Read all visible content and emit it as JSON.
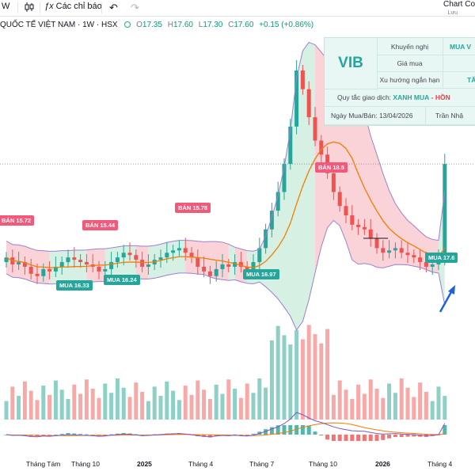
{
  "toolbar": {
    "interval": "W",
    "indicators_label": "Các chỉ báo",
    "chart_title": "Chart Co",
    "chart_subtitle": "Lưu"
  },
  "legend": {
    "symbol": "QUỐC TẾ VIỆT NAM · 1W · HSX",
    "open_label": "O",
    "open": "17.35",
    "high_label": "H",
    "high": "17.60",
    "low_label": "L",
    "low": "17.30",
    "close_label": "C",
    "close": "17.60",
    "change": "+0.15 (+0.86%)"
  },
  "info_table": {
    "ticker": "VIB",
    "rows": [
      {
        "label": "Khuyến nghị",
        "value": "MUA V"
      },
      {
        "label": "Giá mua",
        "value": ""
      },
      {
        "label": "Xu hướng ngắn hạn",
        "value": "TĂ"
      }
    ],
    "rule_label": "Quy tắc giao dịch:",
    "rule_green": "XANH MUA",
    "rule_sep": "-",
    "rule_red": "HỒN",
    "date_text": "Ngày Mua/Bán: 13/04/2026",
    "author_text": "Trần Nhậ"
  },
  "signals": [
    {
      "kind": "sell",
      "text": "BÁN 15.72"
    },
    {
      "kind": "sell",
      "text": "BÁN 15.44"
    },
    {
      "kind": "sell",
      "text": "BÁN 15.78"
    },
    {
      "kind": "sell",
      "text": "BÁN 18.5"
    },
    {
      "kind": "buy",
      "text": "MUA 16.33"
    },
    {
      "kind": "buy",
      "text": "MUA 16.24"
    },
    {
      "kind": "buy",
      "text": "MUA 16.97"
    },
    {
      "kind": "buy",
      "text": "MUA 17.6"
    }
  ],
  "x_axis": [
    "Tháng Tám",
    "Tháng 10",
    "2025",
    "Tháng 4",
    "Tháng 7",
    "Tháng 10",
    "2026",
    "Tháng 4"
  ],
  "colors": {
    "up": "#26a69a",
    "down": "#ef5350",
    "sell_tag": "#f25a7c",
    "buy_tag": "#26a69a",
    "ma": "#f57c00",
    "band": "#9c7fd1"
  },
  "chart_data": {
    "type": "candlestick",
    "timeframe": "1W",
    "price_range": [
      14.4,
      20.6
    ],
    "candles_close": [
      15.6,
      15.45,
      15.5,
      15.4,
      15.25,
      15.2,
      15.35,
      15.3,
      15.4,
      15.5,
      15.6,
      15.55,
      15.5,
      15.45,
      15.4,
      15.3,
      15.35,
      15.5,
      15.6,
      15.7,
      15.65,
      15.55,
      15.4,
      15.45,
      15.55,
      15.6,
      15.7,
      15.75,
      15.8,
      15.7,
      15.6,
      15.4,
      15.3,
      15.2,
      15.35,
      15.45,
      15.4,
      15.5,
      15.4,
      15.35,
      15.5,
      15.8,
      16.2,
      16.6,
      17.0,
      17.6,
      18.4,
      19.6,
      19.2,
      18.6,
      18.1,
      17.8,
      17.4,
      17.0,
      16.7,
      16.5,
      16.3,
      16.25,
      16.2,
      16.0,
      15.8,
      15.7,
      15.75,
      15.8,
      15.7,
      15.65,
      15.6,
      15.5,
      15.4,
      15.45,
      15.6,
      17.6
    ],
    "volume_range": [
      0,
      100
    ]
  }
}
